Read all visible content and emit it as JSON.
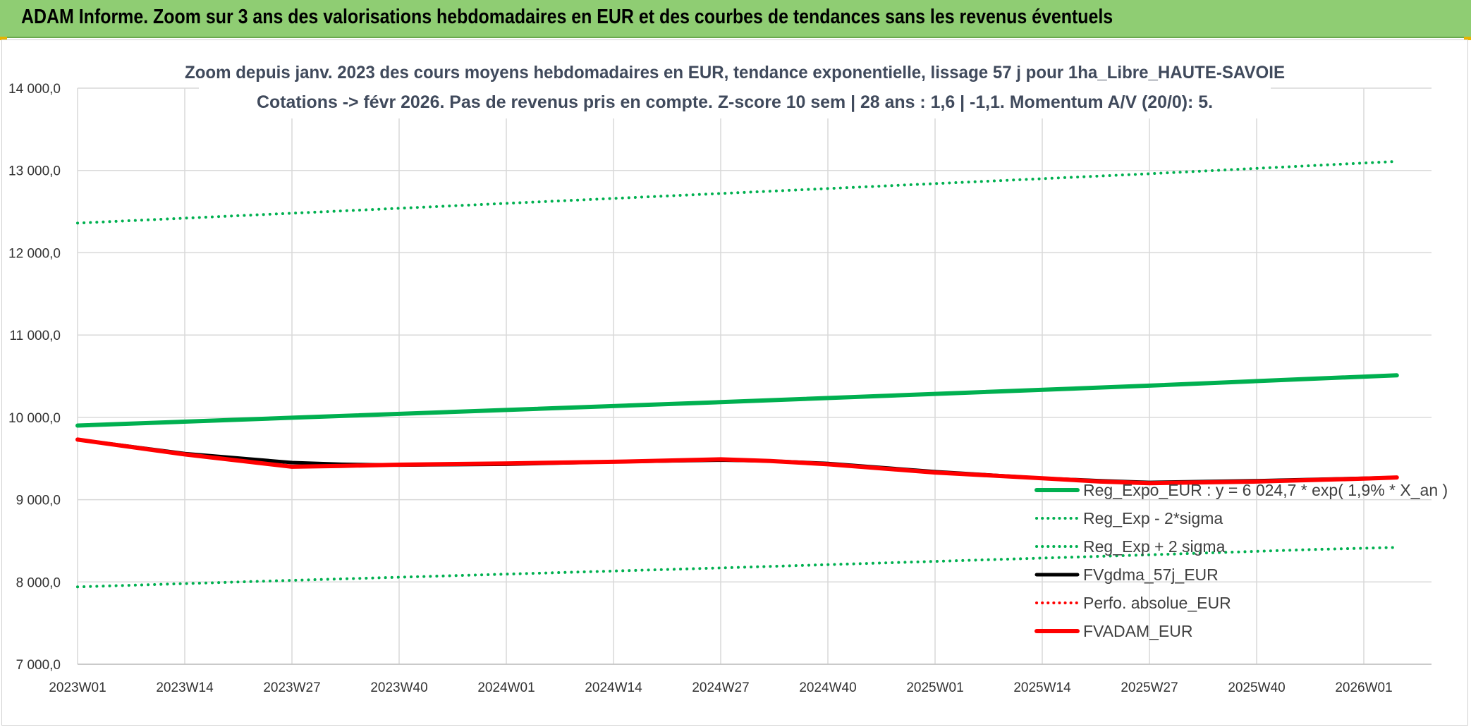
{
  "banner": {
    "title": "ADAM Informe. Zoom sur 3 ans des valorisations hebdomadaires en EUR et des courbes de tendances sans les revenus éventuels"
  },
  "colors": {
    "banner_bg": "#8fcd73",
    "green_series": "#00b050",
    "black_series": "#000000",
    "red_series": "#ff0000",
    "grid": "#d9d9d9"
  },
  "chart_data": {
    "type": "line",
    "title": "Zoom depuis janv. 2023 des cours moyens hebdomadaires en EUR, tendance exponentielle, lissage 57 j pour 1ha_Libre_HAUTE-SAVOIE",
    "subtitle": "Cotations -> févr 2026. Pas de revenus pris en compte. Z-score 10 sem | 28 ans : 1,6 | -1,1. Momentum A/V (20/0): 5.",
    "xlabel": "",
    "ylabel": "",
    "x_ticks": [
      "2023W01",
      "2023W14",
      "2023W27",
      "2023W40",
      "2024W01",
      "2024W14",
      "2024W27",
      "2024W40",
      "2025W01",
      "2025W14",
      "2025W27",
      "2025W40",
      "2026W01"
    ],
    "y_ticks": [
      "7 000,0",
      "8 000,0",
      "9 000,0",
      "10 000,0",
      "11 000,0",
      "12 000,0",
      "13 000,0",
      "14 000,0"
    ],
    "ylim": [
      7000,
      14000
    ],
    "grid": true,
    "legend_position": "bottom-right",
    "series": [
      {
        "name": "Reg_Expo_EUR : y = 6 024,7 * exp( 1,9% *  X_an )",
        "color": "#00b050",
        "style": "solid",
        "width": 6,
        "points": [
          [
            0,
            9900
          ],
          [
            26,
            9995
          ],
          [
            52,
            10090
          ],
          [
            78,
            10185
          ],
          [
            104,
            10285
          ],
          [
            130,
            10385
          ],
          [
            150,
            10470
          ],
          [
            160,
            10510
          ]
        ]
      },
      {
        "name": "Reg_Exp - 2*sigma",
        "color": "#00b050",
        "style": "dotted",
        "width": 4,
        "points": [
          [
            0,
            7940
          ],
          [
            26,
            8020
          ],
          [
            52,
            8095
          ],
          [
            78,
            8170
          ],
          [
            104,
            8250
          ],
          [
            130,
            8330
          ],
          [
            150,
            8395
          ],
          [
            160,
            8420
          ]
        ]
      },
      {
        "name": "Reg_Exp + 2 sigma",
        "color": "#00b050",
        "style": "dotted",
        "width": 4,
        "points": [
          [
            0,
            12360
          ],
          [
            26,
            12480
          ],
          [
            52,
            12600
          ],
          [
            78,
            12720
          ],
          [
            104,
            12840
          ],
          [
            130,
            12960
          ],
          [
            150,
            13060
          ],
          [
            160,
            13110
          ]
        ]
      },
      {
        "name": "FVgdma_57j_EUR",
        "color": "#000000",
        "style": "solid",
        "width": 5,
        "points": [
          [
            0,
            9730
          ],
          [
            13,
            9560
          ],
          [
            26,
            9450
          ],
          [
            32,
            9430
          ],
          [
            39,
            9420
          ],
          [
            52,
            9430
          ],
          [
            65,
            9460
          ],
          [
            78,
            9480
          ],
          [
            84,
            9470
          ],
          [
            91,
            9440
          ],
          [
            104,
            9340
          ],
          [
            117,
            9260
          ],
          [
            124,
            9230
          ],
          [
            130,
            9210
          ],
          [
            143,
            9230
          ],
          [
            156,
            9260
          ],
          [
            160,
            9270
          ]
        ]
      },
      {
        "name": "Perfo. absolue_EUR",
        "color": "#ff0000",
        "style": "dotted",
        "width": 3,
        "points": []
      },
      {
        "name": "FVADAM_EUR",
        "color": "#ff0000",
        "style": "solid",
        "width": 6,
        "points": [
          [
            0,
            9730
          ],
          [
            13,
            9550
          ],
          [
            26,
            9400
          ],
          [
            32,
            9410
          ],
          [
            39,
            9425
          ],
          [
            52,
            9440
          ],
          [
            65,
            9460
          ],
          [
            78,
            9490
          ],
          [
            84,
            9470
          ],
          [
            91,
            9430
          ],
          [
            104,
            9330
          ],
          [
            117,
            9260
          ],
          [
            124,
            9220
          ],
          [
            130,
            9200
          ],
          [
            143,
            9220
          ],
          [
            156,
            9255
          ],
          [
            160,
            9270
          ]
        ]
      }
    ]
  }
}
